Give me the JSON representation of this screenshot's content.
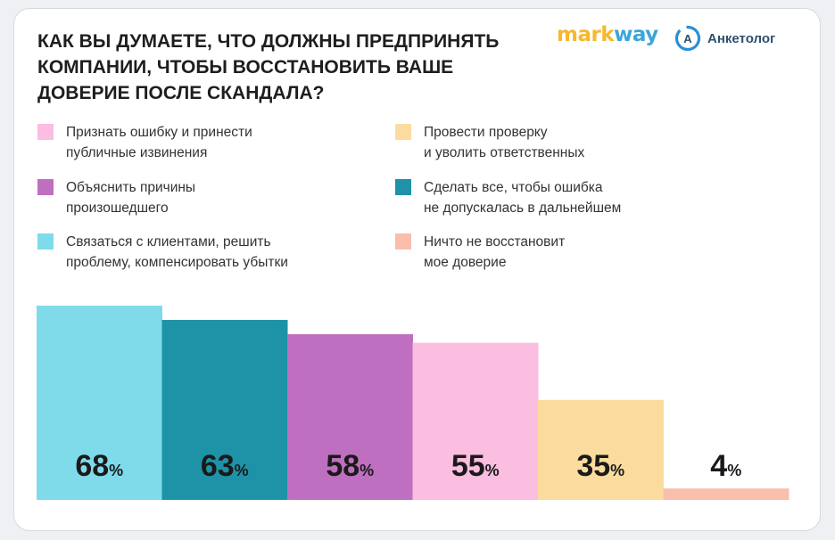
{
  "title_lines": [
    "КАК ВЫ ДУМАЕТЕ, ЧТО ДОЛЖНЫ ПРЕДПРИНЯТЬ",
    "КОМПАНИИ, ЧТОБЫ ВОССТАНОВИТЬ ВАШЕ",
    "ДОВЕРИЕ ПОСЛЕ СКАНДАЛА?"
  ],
  "logos": {
    "markway_part1": "mark",
    "markway_part2": "way",
    "anketolog_mark": "А",
    "anketolog_name": "Анкетолог"
  },
  "legend": [
    {
      "lines": [
        "Признать ошибку и принести",
        "публичные извинения"
      ],
      "color": "#fbbde0"
    },
    {
      "lines": [
        "Объяснить причины",
        "произошедшего"
      ],
      "color": "#bf6fc0"
    },
    {
      "lines": [
        "Связаться с клиентами, решить",
        "проблему, компенсировать убытки"
      ],
      "color": "#7fdbea"
    },
    {
      "lines": [
        "Провести проверку",
        "и уволить ответственных"
      ],
      "color": "#fcdc9e"
    },
    {
      "lines": [
        "Сделать все, чтобы ошибка",
        "не допускалась в дальнейшем"
      ],
      "color": "#1e93a8"
    },
    {
      "lines": [
        "Ничто не восстановит",
        "мое доверие"
      ],
      "color": "#f8bfac"
    }
  ],
  "chart_data": {
    "type": "bar",
    "categories": [
      "Связаться с клиентами, решить проблему, компенсировать убытки",
      "Сделать все, чтобы ошибка не допускалась в дальнейшем",
      "Объяснить причины произошедшего",
      "Признать ошибку и принести публичные извинения",
      "Провести проверку и уволить ответственных",
      "Ничто не восстановит мое доверие"
    ],
    "values": [
      68,
      63,
      58,
      55,
      35,
      4
    ],
    "value_labels": [
      "68",
      "63",
      "58",
      "55",
      "35",
      "4"
    ],
    "unit": "%",
    "colors": [
      "#7fdbea",
      "#1e93a8",
      "#bf6fc0",
      "#fbbde0",
      "#fcdc9e",
      "#f8bfac"
    ],
    "ylim": [
      0,
      68
    ],
    "title": "",
    "xlabel": "",
    "ylabel": ""
  }
}
